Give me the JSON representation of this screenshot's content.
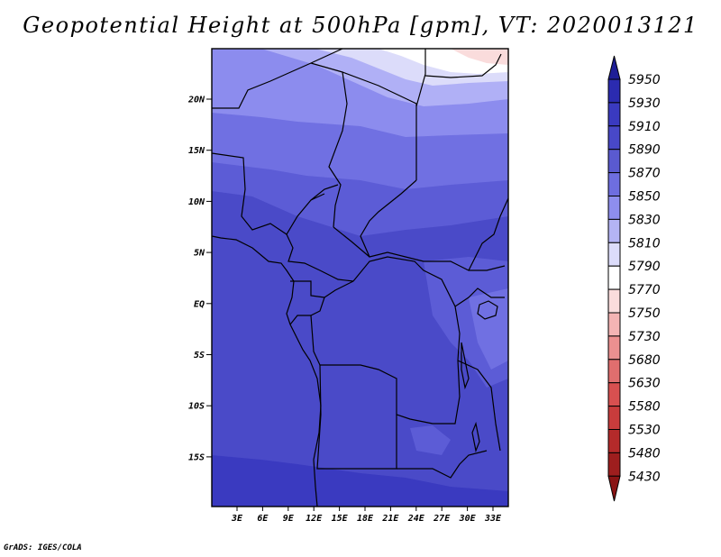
{
  "title": "Geopotential Height at 500hPa [gpm], VT: 2020013121",
  "credit": "GrADS: IGES/COLA",
  "map": {
    "lat_ticks": [
      "20N",
      "15N",
      "10N",
      "5N",
      "EQ",
      "5S",
      "10S",
      "15S"
    ],
    "lon_ticks": [
      "3E",
      "6E",
      "9E",
      "12E",
      "15E",
      "18E",
      "21E",
      "24E",
      "27E",
      "30E",
      "33E"
    ]
  },
  "colorbar": {
    "levels": [
      "5950",
      "5930",
      "5910",
      "5890",
      "5870",
      "5850",
      "5830",
      "5810",
      "5790",
      "5770",
      "5750",
      "5730",
      "5680",
      "5630",
      "5580",
      "5530",
      "5480",
      "5430"
    ],
    "colors": [
      "#1e1e96",
      "#2b2bb0",
      "#3a3ac0",
      "#4848c8",
      "#5a5ad0",
      "#6e6ee0",
      "#8e8eee",
      "#b4b4f4",
      "#dcdcfa",
      "#ffffff",
      "#fadcdc",
      "#f4b4b4",
      "#ec9090",
      "#e06e6e",
      "#d85050",
      "#c83c3c",
      "#b42a2a",
      "#9e1e1e",
      "#8a1414"
    ]
  }
}
